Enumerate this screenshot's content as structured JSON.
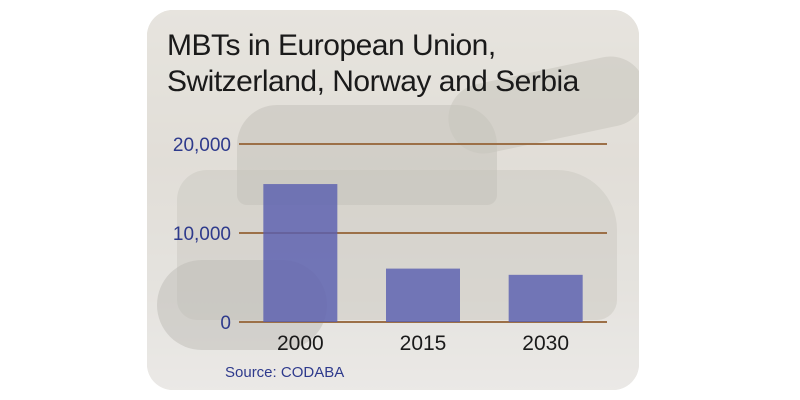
{
  "title": {
    "line1": "MBTs in European Union,",
    "line2": "Switzerland, Norway and Serbia"
  },
  "source": "Source: CODABA",
  "colors": {
    "bar": "#5a5fb0",
    "gridline": "#9c7048",
    "tick_text": "#2e3a8c",
    "title_text": "#1a1a1a"
  },
  "chart_data": {
    "type": "bar",
    "title": "MBTs in European Union, Switzerland, Norway and Serbia",
    "categories": [
      "2000",
      "2015",
      "2030"
    ],
    "values": [
      15500,
      6000,
      5300
    ],
    "yticks": [
      "0",
      "10,000",
      "20,000"
    ],
    "ytick_values": [
      0,
      10000,
      20000
    ],
    "ylim": [
      0,
      20000
    ],
    "xlabel": "",
    "ylabel": "",
    "grid": true,
    "legend": "none"
  }
}
